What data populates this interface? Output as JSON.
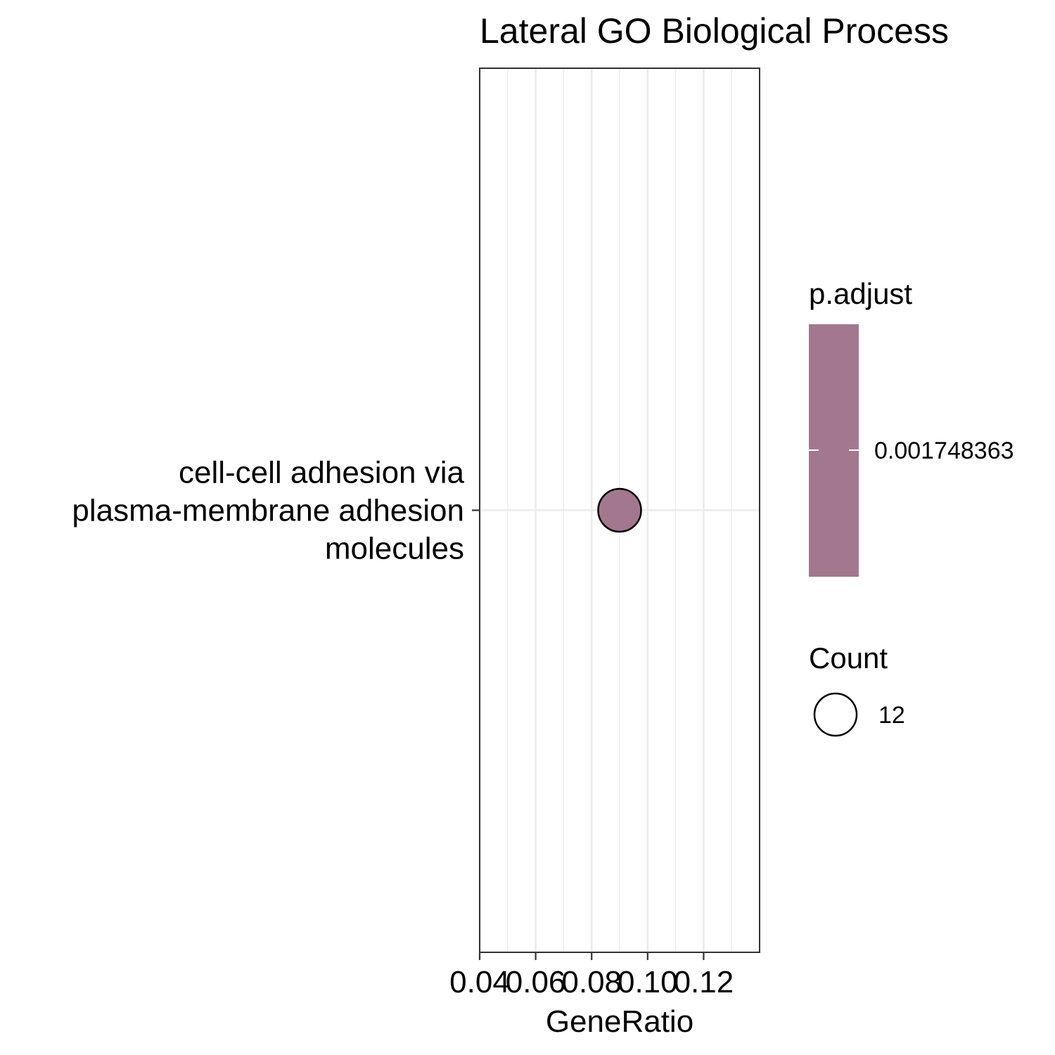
{
  "chart_data": {
    "type": "scatter",
    "title": "Lateral GO Biological Process",
    "xlabel": "GeneRatio",
    "ylabel": "",
    "xlim": [
      0.04,
      0.14
    ],
    "x_ticks": [
      0.04,
      0.06,
      0.08,
      0.1,
      0.12
    ],
    "x_tick_labels": [
      "0.04",
      "0.06",
      "0.08",
      "0.10",
      "0.12"
    ],
    "categories": [
      "cell-cell adhesion via plasma-membrane adhesion molecules"
    ],
    "category_label_lines": [
      [
        "cell-cell adhesion via",
        "plasma-membrane adhesion",
        "molecules"
      ]
    ],
    "points": [
      {
        "category": "cell-cell adhesion via plasma-membrane adhesion molecules",
        "x": 0.09,
        "count": 12,
        "p_adjust": 0.001748363
      }
    ],
    "grid": true,
    "point_color": "#a3788f",
    "legend_placement": "right",
    "legends": {
      "color": {
        "title": "p.adjust",
        "label": "0.001748363",
        "color": "#a3788f"
      },
      "size": {
        "title": "Count",
        "label": "12"
      }
    }
  }
}
